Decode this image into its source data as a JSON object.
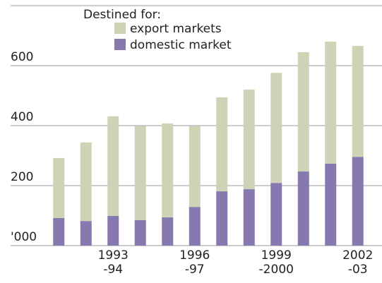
{
  "chart_data": {
    "type": "stacked-bar",
    "legend_title": "Destined for:",
    "categories": [
      null,
      null,
      "1993\n-94",
      null,
      null,
      "1996\n-97",
      null,
      null,
      "1999\n-2000",
      null,
      null,
      "2002\n-03"
    ],
    "series": [
      {
        "name": "domestic market",
        "color": "#8878b0",
        "values": [
          92,
          82,
          99,
          85,
          94,
          129,
          181,
          188,
          209,
          247,
          273,
          296
        ]
      },
      {
        "name": "export markets",
        "color": "#cfd3b5",
        "values": [
          200,
          262,
          332,
          313,
          313,
          269,
          313,
          332,
          367,
          398,
          407,
          370
        ]
      }
    ],
    "ylim": [
      0,
      800
    ],
    "yticks": [
      {
        "value": 0,
        "label": "'000"
      },
      200,
      400,
      600
    ],
    "grid": true
  }
}
